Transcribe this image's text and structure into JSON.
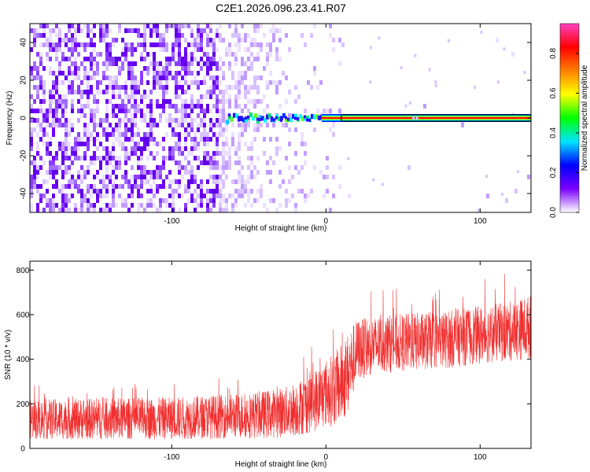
{
  "title": "C2E1.2026.096.23.41.R07",
  "chart_data": [
    {
      "type": "heatmap",
      "xlabel": "Height of straight line (km)",
      "ylabel": "Frequency (Hz)",
      "xlim": [
        -192,
        133
      ],
      "ylim": [
        -50,
        50
      ],
      "x_ticks": [
        -100,
        0,
        100
      ],
      "x_tick_labels": [
        "-100",
        "0",
        "100"
      ],
      "y_ticks": [
        -40,
        -20,
        0,
        20,
        40
      ],
      "y_tick_labels": [
        "-40",
        "-20",
        "0",
        "20",
        "40"
      ],
      "colorbar": {
        "label": "Normalized spectral amplitude",
        "range": [
          0,
          0.95
        ],
        "ticks": [
          0,
          0.2,
          0.4,
          0.6,
          0.8
        ],
        "tick_labels": [
          "0.0",
          "0.2",
          "0.4",
          "0.6",
          "0.8"
        ],
        "colormap": [
          "#ffffff",
          "#7a00ff",
          "#0000ff",
          "#00e5ff",
          "#00ff00",
          "#ffff00",
          "#ff8000",
          "#ff0000",
          "#ff40c0"
        ]
      },
      "features": {
        "carrier_frequency_hz": 0,
        "noise_region_km": [
          -192,
          -20
        ],
        "signal_onset_km": -65,
        "strong_signal_from_km": 10
      }
    },
    {
      "type": "line",
      "xlabel": "Height of straight line (km)",
      "ylabel": "SNR (10 * v/v)",
      "xlim": [
        -192,
        133
      ],
      "ylim": [
        0,
        840
      ],
      "x_ticks": [
        -100,
        0,
        100
      ],
      "x_tick_labels": [
        "-100",
        "0",
        "100"
      ],
      "y_ticks": [
        0,
        200,
        400,
        600,
        800
      ],
      "y_tick_labels": [
        "0",
        "200",
        "400",
        "600",
        "800"
      ],
      "color": "#f03030",
      "envelope": {
        "x": [
          -192,
          -150,
          -100,
          -60,
          -40,
          -25,
          -15,
          -5,
          0,
          5,
          10,
          15,
          20,
          30,
          40,
          60,
          80,
          100,
          120,
          133
        ],
        "mean": [
          125,
          125,
          130,
          140,
          150,
          165,
          200,
          240,
          265,
          290,
          320,
          380,
          440,
          470,
          480,
          490,
          500,
          520,
          545,
          560
        ],
        "band_low": [
          40,
          40,
          40,
          45,
          45,
          50,
          60,
          80,
          95,
          100,
          110,
          160,
          300,
          330,
          340,
          350,
          360,
          380,
          390,
          400
        ],
        "band_high": [
          220,
          225,
          230,
          245,
          260,
          280,
          320,
          370,
          400,
          430,
          470,
          530,
          580,
          590,
          600,
          610,
          620,
          640,
          660,
          690
        ]
      }
    }
  ]
}
